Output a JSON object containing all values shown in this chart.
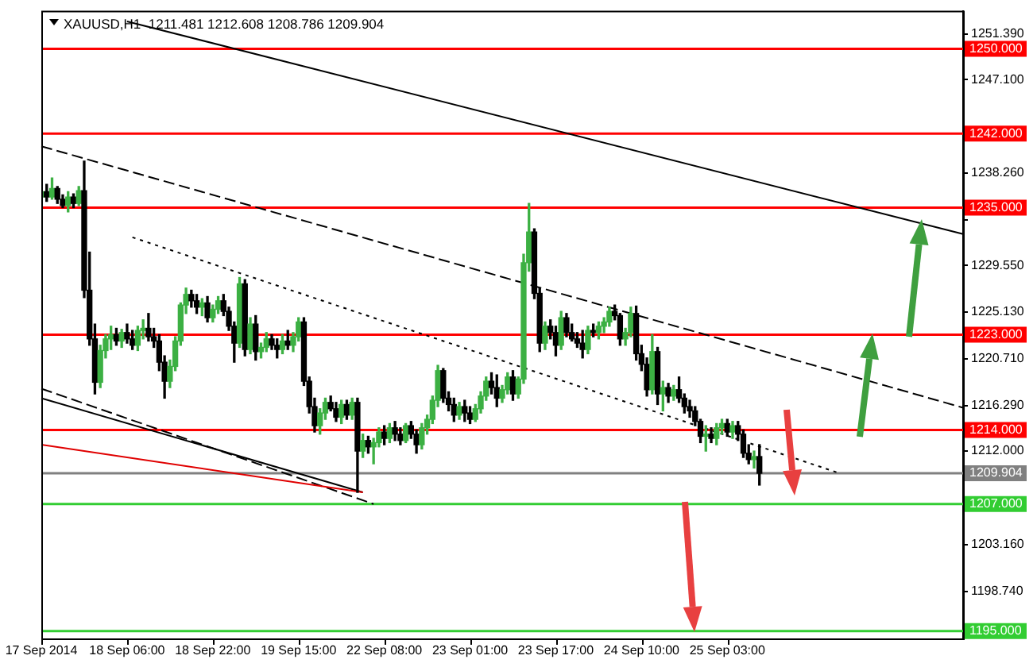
{
  "chart_data": {
    "type": "candlestick",
    "title": "XAUUSD,H1  1211.481 1212.608 1208.786 1209.904",
    "categories": [
      "17 Sep 2014",
      null,
      null,
      null,
      null,
      null,
      null,
      null,
      null,
      null,
      null,
      null,
      null,
      null,
      null,
      null,
      "18 Sep 06:00",
      null,
      null,
      null,
      null,
      null,
      null,
      null,
      null,
      null,
      null,
      null,
      null,
      null,
      null,
      null,
      "18 Sep 22:00",
      null,
      null,
      null,
      null,
      null,
      null,
      null,
      null,
      null,
      null,
      null,
      null,
      null,
      null,
      null,
      "19 Sep 15:00",
      null,
      null,
      null,
      null,
      null,
      null,
      null,
      null,
      null,
      null,
      null,
      null,
      null,
      null,
      null,
      "22 Sep 08:00",
      null,
      null,
      null,
      null,
      null,
      null,
      null,
      null,
      null,
      null,
      null,
      null,
      null,
      null,
      null,
      "23 Sep 01:00",
      null,
      null,
      null,
      null,
      null,
      null,
      null,
      null,
      null,
      null,
      null,
      null,
      null,
      null,
      null,
      "23 Sep 17:00",
      null,
      null,
      null,
      null,
      null,
      null,
      null,
      null,
      null,
      null,
      null,
      null,
      null,
      null,
      null,
      "24 Sep 10:00",
      null,
      null,
      null,
      null,
      null,
      null,
      null,
      null,
      null,
      null,
      null,
      null,
      null,
      null,
      null,
      "25 Sep 03:00",
      null,
      null,
      null,
      null,
      null,
      null,
      null,
      null,
      null,
      null,
      null,
      null,
      null,
      null,
      null,
      null,
      null,
      null,
      null,
      null,
      null,
      null,
      null,
      null,
      null,
      null,
      null,
      null,
      null,
      null,
      null,
      null,
      null,
      null,
      null,
      null,
      null,
      null,
      null,
      null,
      null,
      null,
      null,
      null
    ],
    "ohlc": [
      [
        1236.0,
        1237.0,
        1235.5,
        1236.5
      ],
      [
        1236.5,
        1237.2,
        1235.6,
        1236.0
      ],
      [
        1236.0,
        1237.8,
        1235.8,
        1236.8
      ],
      [
        1236.8,
        1237.0,
        1235.4,
        1235.8
      ],
      [
        1235.8,
        1236.2,
        1235.0,
        1235.2
      ],
      [
        1235.2,
        1236.5,
        1234.6,
        1236.0
      ],
      [
        1236.0,
        1236.3,
        1235.0,
        1235.4
      ],
      [
        1235.4,
        1237.0,
        1235.2,
        1236.6
      ],
      [
        1236.6,
        1239.4,
        1226.5,
        1227.2
      ],
      [
        1227.2,
        1230.8,
        1222.0,
        1222.6
      ],
      [
        1222.6,
        1224.0,
        1217.4,
        1218.5
      ],
      [
        1218.5,
        1222.0,
        1218.0,
        1221.5
      ],
      [
        1221.5,
        1223.0,
        1220.8,
        1222.6
      ],
      [
        1222.6,
        1223.8,
        1221.6,
        1223.0
      ],
      [
        1223.0,
        1223.6,
        1222.0,
        1222.4
      ],
      [
        1222.4,
        1223.5,
        1221.8,
        1223.2
      ],
      [
        1223.2,
        1224.0,
        1222.2,
        1222.6
      ],
      [
        1222.6,
        1223.4,
        1221.6,
        1222.0
      ],
      [
        1222.0,
        1223.8,
        1221.5,
        1223.4
      ],
      [
        1223.4,
        1224.4,
        1222.6,
        1223.6
      ],
      [
        1223.6,
        1225.0,
        1222.4,
        1222.8
      ],
      [
        1222.8,
        1223.6,
        1221.8,
        1222.4
      ],
      [
        1222.4,
        1223.0,
        1219.6,
        1220.4
      ],
      [
        1220.4,
        1221.0,
        1217.0,
        1218.6
      ],
      [
        1218.6,
        1220.6,
        1218.0,
        1220.0
      ],
      [
        1220.0,
        1222.8,
        1219.6,
        1222.4
      ],
      [
        1222.4,
        1226.0,
        1222.0,
        1225.8
      ],
      [
        1225.8,
        1227.4,
        1225.0,
        1226.8
      ],
      [
        1226.8,
        1227.2,
        1225.6,
        1226.2
      ],
      [
        1226.2,
        1226.8,
        1225.0,
        1225.6
      ],
      [
        1225.6,
        1226.4,
        1224.8,
        1226.0
      ],
      [
        1226.0,
        1226.6,
        1224.2,
        1224.6
      ],
      [
        1224.6,
        1225.8,
        1224.2,
        1225.4
      ],
      [
        1225.4,
        1226.6,
        1225.0,
        1226.2
      ],
      [
        1226.2,
        1226.8,
        1224.8,
        1225.2
      ],
      [
        1225.2,
        1225.6,
        1223.4,
        1223.8
      ],
      [
        1223.8,
        1224.2,
        1220.4,
        1222.2
      ],
      [
        1222.2,
        1228.4,
        1221.8,
        1227.8
      ],
      [
        1227.8,
        1228.2,
        1221.0,
        1221.6
      ],
      [
        1221.6,
        1224.6,
        1221.2,
        1224.0
      ],
      [
        1224.0,
        1224.8,
        1220.6,
        1221.4
      ],
      [
        1221.4,
        1222.2,
        1220.8,
        1221.8
      ],
      [
        1221.8,
        1223.2,
        1221.4,
        1222.6
      ],
      [
        1222.6,
        1223.0,
        1221.6,
        1222.0
      ],
      [
        1222.0,
        1222.6,
        1220.8,
        1221.6
      ],
      [
        1221.6,
        1223.0,
        1221.2,
        1222.4
      ],
      [
        1222.4,
        1223.4,
        1221.6,
        1222.0
      ],
      [
        1222.0,
        1223.2,
        1221.4,
        1222.8
      ],
      [
        1222.8,
        1224.6,
        1222.4,
        1224.2
      ],
      [
        1224.2,
        1224.6,
        1218.2,
        1218.6
      ],
      [
        1218.6,
        1219.0,
        1215.6,
        1216.2
      ],
      [
        1216.2,
        1217.0,
        1213.8,
        1214.4
      ],
      [
        1214.4,
        1216.0,
        1213.6,
        1215.6
      ],
      [
        1215.6,
        1217.0,
        1215.0,
        1216.6
      ],
      [
        1216.6,
        1217.2,
        1215.8,
        1216.0
      ],
      [
        1216.0,
        1216.6,
        1214.8,
        1215.2
      ],
      [
        1215.2,
        1216.8,
        1214.6,
        1216.4
      ],
      [
        1216.4,
        1216.8,
        1215.0,
        1215.4
      ],
      [
        1215.4,
        1217.0,
        1215.0,
        1216.6
      ],
      [
        1216.6,
        1217.0,
        1208.1,
        1212.0
      ],
      [
        1212.0,
        1213.6,
        1211.4,
        1213.0
      ],
      [
        1213.0,
        1213.4,
        1211.8,
        1212.4
      ],
      [
        1212.4,
        1213.2,
        1210.8,
        1212.8
      ],
      [
        1212.8,
        1214.2,
        1212.4,
        1213.8
      ],
      [
        1213.8,
        1214.4,
        1212.6,
        1213.2
      ],
      [
        1213.2,
        1214.6,
        1212.8,
        1214.2
      ],
      [
        1214.2,
        1214.8,
        1213.0,
        1213.6
      ],
      [
        1213.6,
        1214.2,
        1212.6,
        1213.0
      ],
      [
        1213.0,
        1214.6,
        1212.8,
        1214.4
      ],
      [
        1214.4,
        1214.8,
        1213.2,
        1213.6
      ],
      [
        1213.6,
        1214.0,
        1211.8,
        1212.6
      ],
      [
        1212.6,
        1214.6,
        1212.2,
        1214.2
      ],
      [
        1214.2,
        1215.4,
        1213.6,
        1215.0
      ],
      [
        1215.0,
        1217.2,
        1214.6,
        1216.8
      ],
      [
        1216.8,
        1220.1,
        1216.2,
        1219.6
      ],
      [
        1219.6,
        1219.8,
        1216.6,
        1217.0
      ],
      [
        1217.0,
        1217.6,
        1215.8,
        1216.4
      ],
      [
        1216.4,
        1217.0,
        1214.8,
        1215.4
      ],
      [
        1215.4,
        1216.6,
        1215.0,
        1216.2
      ],
      [
        1216.2,
        1216.8,
        1214.8,
        1215.6
      ],
      [
        1215.6,
        1216.2,
        1214.6,
        1215.0
      ],
      [
        1215.0,
        1216.4,
        1214.8,
        1216.0
      ],
      [
        1216.0,
        1217.6,
        1215.6,
        1217.2
      ],
      [
        1217.2,
        1219.0,
        1216.8,
        1218.6
      ],
      [
        1218.6,
        1219.4,
        1217.4,
        1218.0
      ],
      [
        1218.0,
        1219.2,
        1216.2,
        1217.0
      ],
      [
        1217.0,
        1218.2,
        1216.6,
        1217.8
      ],
      [
        1217.8,
        1219.4,
        1217.4,
        1219.0
      ],
      [
        1219.0,
        1219.6,
        1216.8,
        1217.4
      ],
      [
        1217.4,
        1219.0,
        1217.0,
        1218.8
      ],
      [
        1218.8,
        1230.6,
        1218.4,
        1229.8
      ],
      [
        1229.8,
        1235.4,
        1229.0,
        1232.7
      ],
      [
        1232.7,
        1233.0,
        1226.4,
        1226.9
      ],
      [
        1226.9,
        1227.4,
        1221.4,
        1222.2
      ],
      [
        1222.2,
        1224.2,
        1221.6,
        1223.8
      ],
      [
        1223.8,
        1224.4,
        1222.6,
        1223.2
      ],
      [
        1223.2,
        1223.8,
        1221.0,
        1222.0
      ],
      [
        1222.0,
        1225.2,
        1221.6,
        1224.6
      ],
      [
        1224.6,
        1225.0,
        1222.8,
        1223.2
      ],
      [
        1223.2,
        1224.0,
        1222.4,
        1222.6
      ],
      [
        1222.6,
        1223.2,
        1221.8,
        1222.2
      ],
      [
        1222.2,
        1223.4,
        1220.8,
        1221.6
      ],
      [
        1221.6,
        1223.8,
        1221.2,
        1223.4
      ],
      [
        1223.4,
        1224.0,
        1222.8,
        1223.2
      ],
      [
        1223.2,
        1224.2,
        1222.6,
        1223.8
      ],
      [
        1223.8,
        1224.6,
        1223.2,
        1224.2
      ],
      [
        1224.2,
        1225.6,
        1223.8,
        1225.2
      ],
      [
        1225.2,
        1225.8,
        1224.4,
        1224.8
      ],
      [
        1224.8,
        1225.0,
        1222.0,
        1222.6
      ],
      [
        1222.6,
        1223.6,
        1222.0,
        1223.2
      ],
      [
        1223.2,
        1225.6,
        1222.8,
        1225.0
      ],
      [
        1225.0,
        1225.7,
        1220.6,
        1221.2
      ],
      [
        1221.2,
        1222.0,
        1219.6,
        1220.2
      ],
      [
        1220.2,
        1220.8,
        1217.2,
        1217.8
      ],
      [
        1217.8,
        1223.0,
        1217.4,
        1221.4
      ],
      [
        1221.4,
        1221.8,
        1216.4,
        1217.4
      ],
      [
        1217.4,
        1218.6,
        1215.8,
        1218.0
      ],
      [
        1218.0,
        1218.4,
        1216.6,
        1217.2
      ],
      [
        1217.2,
        1218.2,
        1216.8,
        1217.8
      ],
      [
        1217.8,
        1219.0,
        1216.6,
        1217.0
      ],
      [
        1217.0,
        1217.4,
        1215.6,
        1216.2
      ],
      [
        1216.2,
        1216.8,
        1215.2,
        1215.8
      ],
      [
        1215.8,
        1216.2,
        1214.4,
        1214.8
      ],
      [
        1214.8,
        1215.0,
        1212.8,
        1213.4
      ],
      [
        1213.4,
        1214.4,
        1212.0,
        1213.6
      ],
      [
        1213.6,
        1214.2,
        1212.8,
        1213.2
      ],
      [
        1213.2,
        1214.6,
        1212.6,
        1214.2
      ],
      [
        1214.2,
        1215.0,
        1213.6,
        1214.6
      ],
      [
        1214.6,
        1215.0,
        1213.4,
        1213.8
      ],
      [
        1213.8,
        1214.8,
        1213.2,
        1214.4
      ],
      [
        1214.4,
        1214.8,
        1213.0,
        1213.6
      ],
      [
        1213.6,
        1214.0,
        1211.4,
        1211.8
      ],
      [
        1211.8,
        1212.6,
        1210.8,
        1211.2
      ],
      [
        1211.2,
        1212.0,
        1210.4,
        1211.481
      ],
      [
        1211.481,
        1212.608,
        1208.786,
        1209.904
      ],
      null,
      null,
      null,
      null,
      null,
      null,
      null,
      null,
      null,
      null,
      null,
      null,
      null,
      null,
      null,
      null,
      null,
      null,
      null,
      null,
      null,
      null,
      null,
      null,
      null,
      null,
      null,
      null,
      null,
      null,
      null,
      null,
      null,
      null,
      null,
      null,
      null,
      null
    ],
    "series": [
      {
        "type": "line",
        "color": "#000000",
        "line_style": "solid",
        "values": [
          null,
          null,
          null,
          null,
          null,
          null,
          null,
          null,
          null,
          null,
          null,
          null,
          null,
          null,
          null,
          null,
          1252.6,
          null,
          null,
          null,
          null,
          null,
          null,
          null,
          null,
          null,
          null,
          null,
          null,
          null,
          null,
          null,
          null,
          null,
          null,
          null,
          null,
          null,
          null,
          null,
          null,
          null,
          null,
          null,
          null,
          null,
          null,
          null,
          null,
          null,
          null,
          null,
          null,
          null,
          null,
          null,
          null,
          null,
          null,
          null,
          null,
          null,
          null,
          null,
          null,
          null,
          null,
          null,
          null,
          null,
          null,
          null,
          null,
          null,
          null,
          null,
          null,
          null,
          null,
          null,
          null,
          null,
          null,
          null,
          null,
          null,
          null,
          null,
          null,
          null,
          null,
          null,
          null,
          null,
          null,
          null,
          null,
          null,
          null,
          null,
          null,
          null,
          null,
          null,
          null,
          null,
          null,
          null,
          null,
          null,
          null,
          null,
          null,
          null,
          null,
          null,
          null,
          null,
          null,
          null,
          null,
          null,
          null,
          null,
          null,
          null,
          null,
          null,
          null,
          null,
          null,
          null,
          null,
          null,
          null,
          null,
          null,
          null,
          null,
          null,
          null,
          null,
          null,
          null,
          null,
          null,
          null,
          null,
          null,
          null,
          null,
          null,
          null,
          null,
          null,
          null,
          null,
          null,
          null,
          null,
          null,
          null,
          null,
          null,
          null,
          null,
          null,
          null,
          null,
          null,
          null,
          null,
          1232.5
        ]
      },
      {
        "type": "line",
        "color": "#000000",
        "line_style": "dashed",
        "values": [
          1240.8,
          null,
          null,
          null,
          null,
          null,
          null,
          null,
          null,
          null,
          null,
          null,
          null,
          null,
          null,
          null,
          null,
          null,
          null,
          null,
          null,
          null,
          null,
          null,
          null,
          null,
          null,
          null,
          null,
          null,
          null,
          null,
          null,
          null,
          null,
          null,
          null,
          null,
          null,
          null,
          null,
          null,
          null,
          null,
          null,
          null,
          null,
          null,
          null,
          null,
          null,
          null,
          null,
          null,
          null,
          null,
          null,
          null,
          null,
          null,
          null,
          null,
          null,
          null,
          null,
          null,
          null,
          null,
          null,
          null,
          null,
          null,
          null,
          null,
          null,
          null,
          null,
          null,
          null,
          null,
          null,
          null,
          null,
          null,
          null,
          null,
          null,
          null,
          null,
          null,
          null,
          null,
          null,
          null,
          null,
          null,
          null,
          null,
          null,
          null,
          null,
          null,
          null,
          null,
          null,
          null,
          null,
          null,
          null,
          null,
          null,
          null,
          null,
          null,
          null,
          null,
          null,
          null,
          null,
          null,
          null,
          null,
          null,
          null,
          null,
          null,
          null,
          null,
          null,
          null,
          null,
          null,
          null,
          null,
          null,
          null,
          null,
          null,
          null,
          null,
          null,
          null,
          null,
          null,
          null,
          null,
          null,
          null,
          null,
          null,
          null,
          null,
          null,
          null,
          null,
          null,
          null,
          null,
          null,
          null,
          null,
          null,
          null,
          null,
          null,
          null,
          null,
          null,
          null,
          null,
          null,
          null,
          1216.1
        ]
      },
      {
        "type": "line",
        "color": "#000000",
        "line_style": "dotted",
        "values": [
          null,
          null,
          null,
          null,
          null,
          null,
          null,
          null,
          null,
          null,
          null,
          null,
          null,
          null,
          null,
          null,
          null,
          1232.2,
          null,
          null,
          null,
          null,
          null,
          null,
          null,
          null,
          null,
          null,
          null,
          null,
          null,
          null,
          null,
          null,
          null,
          null,
          null,
          null,
          null,
          null,
          null,
          null,
          null,
          null,
          null,
          null,
          null,
          null,
          null,
          null,
          null,
          null,
          null,
          null,
          null,
          null,
          null,
          null,
          null,
          null,
          null,
          null,
          null,
          null,
          null,
          null,
          null,
          null,
          null,
          null,
          null,
          null,
          null,
          null,
          null,
          null,
          null,
          null,
          null,
          null,
          null,
          null,
          null,
          null,
          null,
          null,
          null,
          null,
          null,
          null,
          null,
          null,
          null,
          null,
          null,
          null,
          null,
          null,
          null,
          null,
          null,
          null,
          null,
          null,
          null,
          null,
          null,
          null,
          null,
          null,
          null,
          null,
          null,
          null,
          null,
          null,
          null,
          null,
          null,
          null,
          null,
          null,
          null,
          null,
          null,
          null,
          null,
          null,
          null,
          null,
          null,
          null,
          null,
          null,
          null,
          null,
          null,
          null,
          null,
          null,
          null,
          null,
          null,
          null,
          null,
          null,
          null,
          null,
          null,
          1209.9,
          null,
          null,
          null,
          null,
          null,
          null,
          null,
          null,
          null,
          null,
          null,
          null,
          null,
          null,
          null,
          null,
          null,
          null,
          null,
          null,
          null,
          null,
          null
        ]
      },
      {
        "type": "line",
        "color": "#e00000",
        "line_style": "solid",
        "values": [
          1212.6,
          null,
          null,
          null,
          null,
          null,
          null,
          null,
          null,
          null,
          null,
          null,
          null,
          null,
          null,
          null,
          null,
          null,
          null,
          null,
          null,
          null,
          null,
          null,
          null,
          null,
          null,
          null,
          null,
          null,
          null,
          null,
          null,
          null,
          null,
          null,
          null,
          null,
          null,
          null,
          null,
          null,
          null,
          null,
          null,
          null,
          null,
          null,
          null,
          null,
          null,
          null,
          null,
          null,
          null,
          null,
          null,
          null,
          null,
          null,
          1208.1,
          null,
          null,
          null,
          null,
          null,
          null,
          null,
          null,
          null,
          null,
          null,
          null,
          null,
          null,
          null,
          null,
          null,
          null,
          null,
          null,
          null,
          null,
          null,
          null,
          null,
          null,
          null,
          null,
          null,
          null,
          null,
          null,
          null,
          null,
          null,
          null,
          null,
          null,
          null,
          null,
          null,
          null,
          null,
          null,
          null,
          null,
          null,
          null,
          null,
          null,
          null,
          null,
          null,
          null,
          null,
          null,
          null,
          null,
          null,
          null,
          null,
          null,
          null,
          null,
          null,
          null,
          null,
          null,
          null,
          null,
          null,
          null,
          null,
          null,
          null,
          null,
          null,
          null,
          null,
          null,
          null,
          null,
          null,
          null,
          null,
          null,
          null,
          null,
          null,
          null,
          null,
          null,
          null,
          null,
          null,
          null,
          null,
          null,
          null,
          null,
          null,
          null,
          null,
          null,
          null,
          null,
          null,
          null,
          null,
          null,
          null,
          null
        ]
      },
      {
        "type": "line",
        "color": "#000000",
        "line_style": "solid",
        "values": [
          1217.0,
          null,
          null,
          null,
          null,
          null,
          null,
          null,
          null,
          null,
          null,
          null,
          null,
          null,
          null,
          null,
          null,
          null,
          null,
          null,
          null,
          null,
          null,
          null,
          null,
          null,
          null,
          null,
          null,
          null,
          null,
          null,
          null,
          null,
          null,
          null,
          null,
          null,
          null,
          null,
          null,
          null,
          null,
          null,
          null,
          null,
          null,
          null,
          null,
          null,
          null,
          null,
          null,
          null,
          null,
          null,
          null,
          null,
          null,
          null,
          1208.1,
          null,
          null,
          null,
          null,
          null,
          null,
          null,
          null,
          null,
          null,
          null,
          null,
          null,
          null,
          null,
          null,
          null,
          null,
          null,
          null,
          null,
          null,
          null,
          null,
          null,
          null,
          null,
          null,
          null,
          null,
          null,
          null,
          null,
          null,
          null,
          null,
          null,
          null,
          null,
          null,
          null,
          null,
          null,
          null,
          null,
          null,
          null,
          null,
          null,
          null,
          null,
          null,
          null,
          null,
          null,
          null,
          null,
          null,
          null,
          null,
          null,
          null,
          null,
          null,
          null,
          null,
          null,
          null,
          null,
          null,
          null,
          null,
          null,
          null,
          null,
          null,
          null,
          null,
          null,
          null,
          null,
          null,
          null,
          null,
          null,
          null,
          null,
          null,
          null,
          null,
          null,
          null,
          null,
          null,
          null,
          null,
          null,
          null,
          null,
          null,
          null,
          null,
          null,
          null,
          null,
          null,
          null,
          null,
          null,
          null,
          null,
          null
        ]
      },
      {
        "type": "line",
        "color": "#000000",
        "line_style": "dashed",
        "values": [
          1217.9,
          null,
          null,
          null,
          null,
          null,
          null,
          null,
          null,
          null,
          null,
          null,
          null,
          null,
          null,
          null,
          null,
          null,
          null,
          null,
          null,
          null,
          null,
          null,
          null,
          null,
          null,
          null,
          null,
          null,
          null,
          null,
          null,
          null,
          null,
          null,
          null,
          null,
          null,
          null,
          null,
          null,
          null,
          null,
          null,
          null,
          null,
          null,
          null,
          null,
          null,
          null,
          null,
          null,
          null,
          null,
          null,
          null,
          null,
          null,
          null,
          null,
          1207.0,
          null,
          null,
          null,
          null,
          null,
          null,
          null,
          null,
          null,
          null,
          null,
          null,
          null,
          null,
          null,
          null,
          null,
          null,
          null,
          null,
          null,
          null,
          null,
          null,
          null,
          null,
          null,
          null,
          null,
          null,
          null,
          null,
          null,
          null,
          null,
          null,
          null,
          null,
          null,
          null,
          null,
          null,
          null,
          null,
          null,
          null,
          null,
          null,
          null,
          null,
          null,
          null,
          null,
          null,
          null,
          null,
          null,
          null,
          null,
          null,
          null,
          null,
          null,
          null,
          null,
          null,
          null,
          null,
          null,
          null,
          null,
          null,
          null,
          null,
          null,
          null,
          null,
          null,
          null,
          null,
          null,
          null,
          null,
          null,
          null,
          null,
          null,
          null,
          null,
          null,
          null,
          null,
          null,
          null,
          null,
          null,
          null,
          null,
          null,
          null,
          null,
          null,
          null,
          null,
          null,
          null,
          null,
          null,
          null,
          null
        ]
      }
    ],
    "ylim": [
      1194.3,
      1253.6
    ],
    "yticks": [
      {
        "value": 1198.74,
        "label": "1198.740"
      },
      {
        "value": 1203.16,
        "label": "1203.160"
      },
      {
        "value": 1212,
        "label": "1212.000"
      },
      {
        "value": 1216.29,
        "label": "1216.290"
      },
      {
        "value": 1220.71,
        "label": "1220.710"
      },
      {
        "value": 1225.13,
        "label": "1225.130"
      },
      {
        "value": 1229.55,
        "label": "1229.550"
      },
      {
        "value": 1233.84,
        "label": null
      },
      {
        "value": 1238.26,
        "label": "1238.260"
      },
      {
        "value": 1247.1,
        "label": "1247.100"
      },
      {
        "value": 1251.39,
        "label": "1251.390"
      }
    ],
    "ref_lines": [
      {
        "axis": "y",
        "value": 1250,
        "label": "1250.000",
        "color": "#ff0000"
      },
      {
        "axis": "y",
        "value": 1242,
        "label": "1242.000",
        "color": "#ff0000"
      },
      {
        "axis": "y",
        "value": 1235,
        "label": "1235.000",
        "color": "#ff0000"
      },
      {
        "axis": "y",
        "value": 1223,
        "label": "1223.000",
        "color": "#ff0000"
      },
      {
        "axis": "y",
        "value": 1214,
        "label": "1214.000",
        "color": "#ff0000"
      },
      {
        "axis": "y",
        "value": 1209.904,
        "label": "1209.904",
        "color": "#808080"
      },
      {
        "axis": "y",
        "value": 1207,
        "label": "1207.000",
        "color": "#32cd32"
      },
      {
        "axis": "y",
        "value": 1195,
        "label": "1195.000",
        "color": "#32cd32"
      }
    ],
    "grid": false,
    "legend": false
  }
}
